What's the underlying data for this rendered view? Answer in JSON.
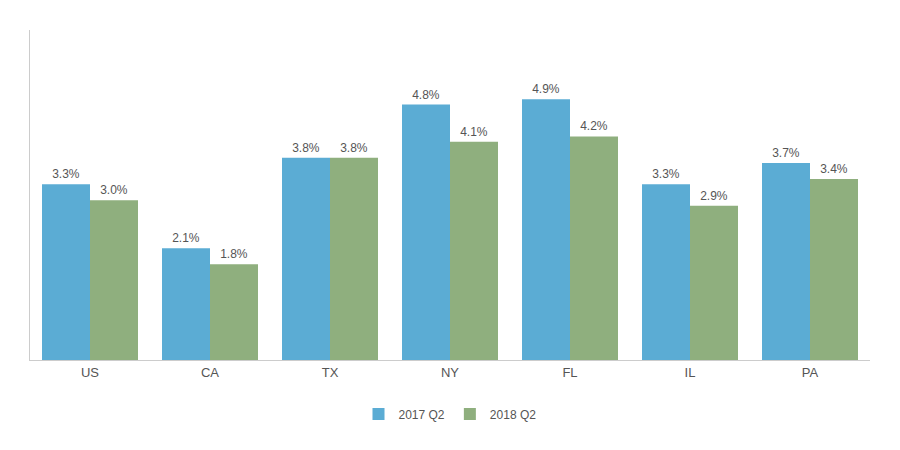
{
  "chart_data": {
    "type": "bar",
    "categories": [
      "US",
      "CA",
      "TX",
      "NY",
      "FL",
      "IL",
      "PA"
    ],
    "series": [
      {
        "name": "2017 Q2",
        "color": "#5BACD4",
        "values": [
          3.3,
          2.1,
          3.8,
          4.8,
          4.9,
          3.3,
          3.7
        ],
        "value_labels": [
          "3.3%",
          "2.1%",
          "3.8%",
          "4.8%",
          "4.9%",
          "3.3%",
          "3.7%"
        ]
      },
      {
        "name": "2018 Q2",
        "color": "#8FAF7E",
        "values": [
          3.0,
          1.8,
          3.8,
          4.1,
          4.2,
          2.9,
          3.4
        ],
        "value_labels": [
          "3.0%",
          "1.8%",
          "3.8%",
          "4.1%",
          "4.2%",
          "2.9%",
          "3.4%"
        ]
      }
    ],
    "ylim": [
      0,
      6.2
    ],
    "grid": false,
    "legend": "bottom",
    "data_labels": true,
    "tick_labels": "x"
  }
}
